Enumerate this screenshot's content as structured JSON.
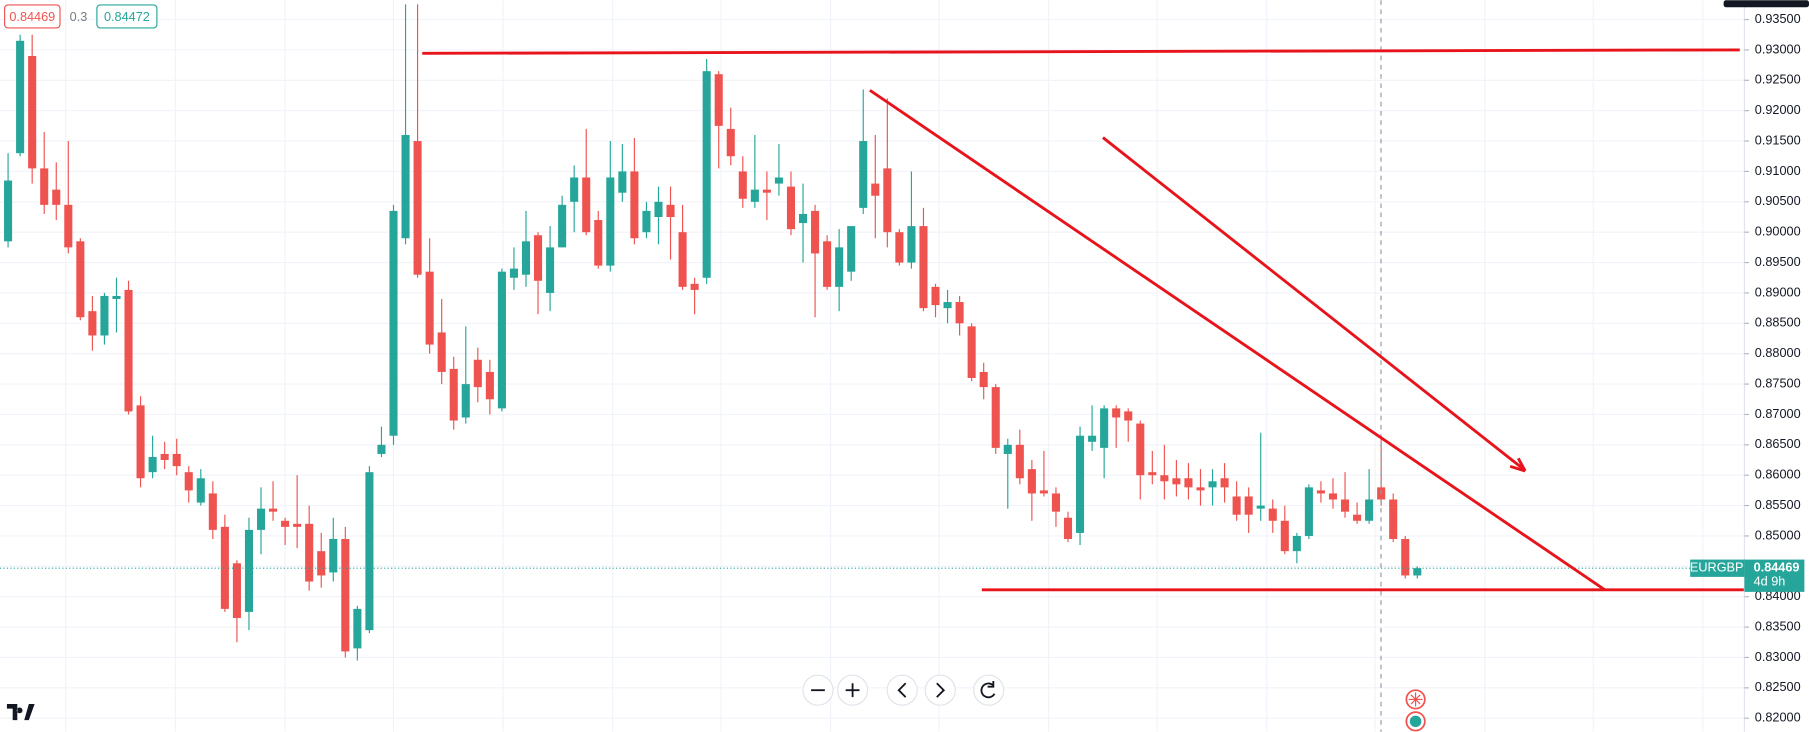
{
  "chart_data": {
    "type": "candlestick",
    "symbol": "EURGBP",
    "bid": 0.84469,
    "spread": 0.3,
    "ask": 0.84472,
    "last_price": 0.84469,
    "countdown": "4d 9h",
    "up_color": "#26a69a",
    "down_color": "#ef5350",
    "grid": true,
    "ylim": [
      0.81778,
      0.93817
    ],
    "yticks": [
      {
        "value": 0.82,
        "label": "0.82000"
      },
      {
        "value": 0.825,
        "label": "0.82500"
      },
      {
        "value": 0.83,
        "label": "0.83000"
      },
      {
        "value": 0.835,
        "label": "0.83500"
      },
      {
        "value": 0.84,
        "label": "0.84000"
      },
      {
        "value": 0.845,
        "label": "0.84500"
      },
      {
        "value": 0.85,
        "label": "0.85000"
      },
      {
        "value": 0.855,
        "label": "0.85500"
      },
      {
        "value": 0.86,
        "label": "0.86000"
      },
      {
        "value": 0.865,
        "label": "0.86500"
      },
      {
        "value": 0.87,
        "label": "0.87000"
      },
      {
        "value": 0.875,
        "label": "0.87500"
      },
      {
        "value": 0.88,
        "label": "0.88000"
      },
      {
        "value": 0.885,
        "label": "0.88500"
      },
      {
        "value": 0.89,
        "label": "0.89000"
      },
      {
        "value": 0.895,
        "label": "0.89500"
      },
      {
        "value": 0.9,
        "label": "0.90000"
      },
      {
        "value": 0.905,
        "label": "0.90500"
      },
      {
        "value": 0.91,
        "label": "0.91000"
      },
      {
        "value": 0.915,
        "label": "0.91500"
      },
      {
        "value": 0.92,
        "label": "0.92000"
      },
      {
        "value": 0.925,
        "label": "0.92500"
      },
      {
        "value": 0.93,
        "label": "0.93000"
      },
      {
        "value": 0.935,
        "label": "0.93500"
      }
    ],
    "open": [
      0.8985,
      0.913,
      0.929,
      0.9105,
      0.907,
      0.9045,
      0.8985,
      0.887,
      0.883,
      0.889,
      0.8905,
      0.8715,
      0.8605,
      0.8635,
      0.8635,
      0.8605,
      0.8555,
      0.857,
      0.8515,
      0.8455,
      0.8375,
      0.851,
      0.8545,
      0.8525,
      0.852,
      0.852,
      0.8475,
      0.844,
      0.8495,
      0.8315,
      0.8345,
      0.8635,
      0.8665,
      0.899,
      0.915,
      0.8935,
      0.8835,
      0.8775,
      0.8695,
      0.879,
      0.877,
      0.871,
      0.8925,
      0.893,
      0.8995,
      0.89,
      0.8975,
      0.905,
      0.909,
      0.902,
      0.8945,
      0.9065,
      0.91,
      0.9,
      0.9025,
      0.9045,
      0.9,
      0.8915,
      0.8925,
      0.926,
      0.917,
      0.91,
      0.905,
      0.907,
      0.908,
      0.9075,
      0.9015,
      0.9035,
      0.8985,
      0.891,
      0.8935,
      0.904,
      0.908,
      0.9105,
      0.9,
      0.895,
      0.901,
      0.891,
      0.8875,
      0.8885,
      0.8845,
      0.877,
      0.8745,
      0.8635,
      0.865,
      0.861,
      0.8575,
      0.857,
      0.853,
      0.8505,
      0.8655,
      0.8645,
      0.871,
      0.8705,
      0.8685,
      0.8605,
      0.86,
      0.8595,
      0.8595,
      0.858,
      0.858,
      0.8595,
      0.8565,
      0.8565,
      0.8545,
      0.8545,
      0.8525,
      0.8475,
      0.85,
      0.8575,
      0.857,
      0.856,
      0.8535,
      0.8525,
      0.858,
      0.856,
      0.8495,
      0.8435
    ],
    "high": [
      0.913,
      0.9325,
      0.9325,
      0.9165,
      0.9115,
      0.915,
      0.899,
      0.8895,
      0.89,
      0.8925,
      0.892,
      0.873,
      0.8665,
      0.8655,
      0.866,
      0.8615,
      0.861,
      0.859,
      0.8535,
      0.846,
      0.853,
      0.858,
      0.859,
      0.853,
      0.86,
      0.855,
      0.8505,
      0.853,
      0.8515,
      0.8385,
      0.8615,
      0.868,
      0.9045,
      0.9375,
      0.9375,
      0.899,
      0.889,
      0.8795,
      0.8845,
      0.881,
      0.879,
      0.894,
      0.8975,
      0.9035,
      0.9,
      0.901,
      0.906,
      0.911,
      0.917,
      0.9035,
      0.915,
      0.9145,
      0.9155,
      0.905,
      0.9075,
      0.9075,
      0.9045,
      0.8925,
      0.9285,
      0.9265,
      0.9205,
      0.9125,
      0.916,
      0.91,
      0.9145,
      0.91,
      0.908,
      0.9045,
      0.8995,
      0.9005,
      0.901,
      0.9235,
      0.916,
      0.922,
      0.9005,
      0.91,
      0.904,
      0.8915,
      0.8905,
      0.8895,
      0.885,
      0.8785,
      0.875,
      0.866,
      0.8675,
      0.8625,
      0.864,
      0.858,
      0.854,
      0.868,
      0.8715,
      0.8715,
      0.8715,
      0.871,
      0.869,
      0.864,
      0.865,
      0.8625,
      0.862,
      0.861,
      0.861,
      0.862,
      0.859,
      0.858,
      0.867,
      0.856,
      0.855,
      0.8505,
      0.8585,
      0.859,
      0.8595,
      0.8605,
      0.8555,
      0.861,
      0.8665,
      0.857,
      0.85,
      0.845
    ],
    "low": [
      0.8975,
      0.9125,
      0.908,
      0.903,
      0.902,
      0.8965,
      0.8855,
      0.8805,
      0.8815,
      0.8835,
      0.87,
      0.858,
      0.8595,
      0.861,
      0.86,
      0.8555,
      0.855,
      0.8495,
      0.8375,
      0.8325,
      0.8345,
      0.847,
      0.8525,
      0.8485,
      0.848,
      0.841,
      0.8415,
      0.8425,
      0.83,
      0.8295,
      0.834,
      0.863,
      0.865,
      0.898,
      0.8925,
      0.88,
      0.875,
      0.8675,
      0.8685,
      0.872,
      0.87,
      0.8705,
      0.8905,
      0.891,
      0.8865,
      0.887,
      0.8975,
      0.9,
      0.8995,
      0.894,
      0.8935,
      0.905,
      0.898,
      0.899,
      0.898,
      0.8955,
      0.8905,
      0.8865,
      0.8915,
      0.9105,
      0.911,
      0.904,
      0.904,
      0.902,
      0.906,
      0.8995,
      0.895,
      0.886,
      0.8905,
      0.887,
      0.892,
      0.903,
      0.899,
      0.8975,
      0.8945,
      0.894,
      0.887,
      0.886,
      0.885,
      0.883,
      0.8755,
      0.8725,
      0.8635,
      0.8545,
      0.8585,
      0.8525,
      0.8565,
      0.8515,
      0.849,
      0.8485,
      0.864,
      0.8595,
      0.8645,
      0.8655,
      0.856,
      0.8585,
      0.856,
      0.8565,
      0.856,
      0.855,
      0.855,
      0.8555,
      0.8525,
      0.8505,
      0.8525,
      0.8505,
      0.847,
      0.8455,
      0.8495,
      0.8555,
      0.8545,
      0.853,
      0.852,
      0.852,
      0.855,
      0.849,
      0.843,
      0.843
    ],
    "close": [
      0.9085,
      0.9315,
      0.9105,
      0.9045,
      0.9045,
      0.8975,
      0.886,
      0.883,
      0.8895,
      0.8895,
      0.8705,
      0.8595,
      0.863,
      0.8625,
      0.8615,
      0.8575,
      0.8595,
      0.851,
      0.838,
      0.8365,
      0.851,
      0.8545,
      0.854,
      0.8515,
      0.8515,
      0.8425,
      0.8435,
      0.8495,
      0.831,
      0.838,
      0.8605,
      0.865,
      0.9035,
      0.916,
      0.893,
      0.8815,
      0.877,
      0.869,
      0.875,
      0.8745,
      0.8725,
      0.8935,
      0.894,
      0.8985,
      0.892,
      0.8975,
      0.9045,
      0.909,
      0.9,
      0.8945,
      0.909,
      0.91,
      0.899,
      0.9035,
      0.905,
      0.9025,
      0.891,
      0.8905,
      0.9265,
      0.9175,
      0.9125,
      0.9055,
      0.907,
      0.9065,
      0.909,
      0.9005,
      0.903,
      0.8965,
      0.891,
      0.8975,
      0.901,
      0.915,
      0.906,
      0.9,
      0.895,
      0.901,
      0.8875,
      0.888,
      0.8885,
      0.885,
      0.876,
      0.8745,
      0.8645,
      0.865,
      0.8595,
      0.857,
      0.857,
      0.854,
      0.8495,
      0.8665,
      0.8665,
      0.871,
      0.8695,
      0.869,
      0.86,
      0.86,
      0.859,
      0.8585,
      0.858,
      0.8575,
      0.859,
      0.858,
      0.8535,
      0.8535,
      0.855,
      0.8525,
      0.8475,
      0.85,
      0.858,
      0.857,
      0.856,
      0.854,
      0.8525,
      0.856,
      0.856,
      0.8495,
      0.8435,
      0.8447
    ]
  }
}
